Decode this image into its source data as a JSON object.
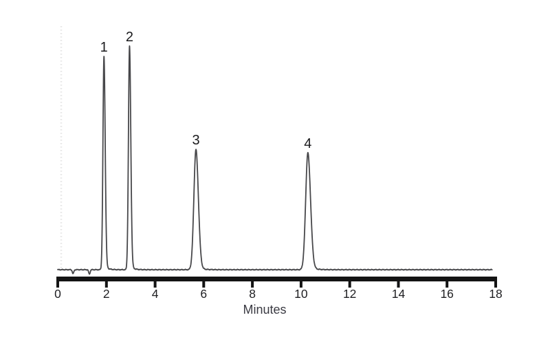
{
  "figure": {
    "background": "#ffffff",
    "description": "Scanned chromatogram trace with four numbered peaks"
  },
  "chart_data": {
    "type": "line",
    "title": "",
    "xlabel": "Minutes",
    "ylabel": "",
    "x_range": [
      0,
      18
    ],
    "x_ticks": [
      0,
      2,
      4,
      6,
      8,
      10,
      12,
      14,
      16,
      18
    ],
    "x_tick_labels": [
      "0",
      "2",
      "4",
      "6",
      "8",
      "10",
      "12",
      "14",
      "16",
      "18"
    ],
    "grid": false,
    "legend": false,
    "y_axis_shown": false,
    "trace_color": "#47474a",
    "axis_color": "#141414",
    "tick_label_color": "#1f1f22",
    "peak_label_color": "#1a1a1c",
    "trace_start_min": 0.0,
    "trace_end_min": 17.85,
    "noise_amp_rel": 0.0022,
    "peaks": [
      {
        "label": "1",
        "retention_min": 1.9,
        "height_rel": 0.954,
        "sigma_left_min": 0.042,
        "sigma_right_min": 0.05,
        "tail_tau_min": 0.12,
        "tail_frac": 0.025
      },
      {
        "label": "2",
        "retention_min": 2.95,
        "height_rel": 1.0,
        "sigma_left_min": 0.044,
        "sigma_right_min": 0.052,
        "tail_tau_min": 0.12,
        "tail_frac": 0.025
      },
      {
        "label": "3",
        "retention_min": 5.68,
        "height_rel": 0.538,
        "sigma_left_min": 0.085,
        "sigma_right_min": 0.1,
        "tail_tau_min": 0.18,
        "tail_frac": 0.03
      },
      {
        "label": "4",
        "retention_min": 10.28,
        "height_rel": 0.523,
        "sigma_left_min": 0.09,
        "sigma_right_min": 0.11,
        "tail_tau_min": 0.2,
        "tail_frac": 0.03
      }
    ],
    "baseline_dips": [
      {
        "time_min": 0.63,
        "depth_rel": 0.018,
        "sigma_min": 0.03
      },
      {
        "time_min": 1.3,
        "depth_rel": 0.02,
        "sigma_min": 0.03
      }
    ]
  }
}
